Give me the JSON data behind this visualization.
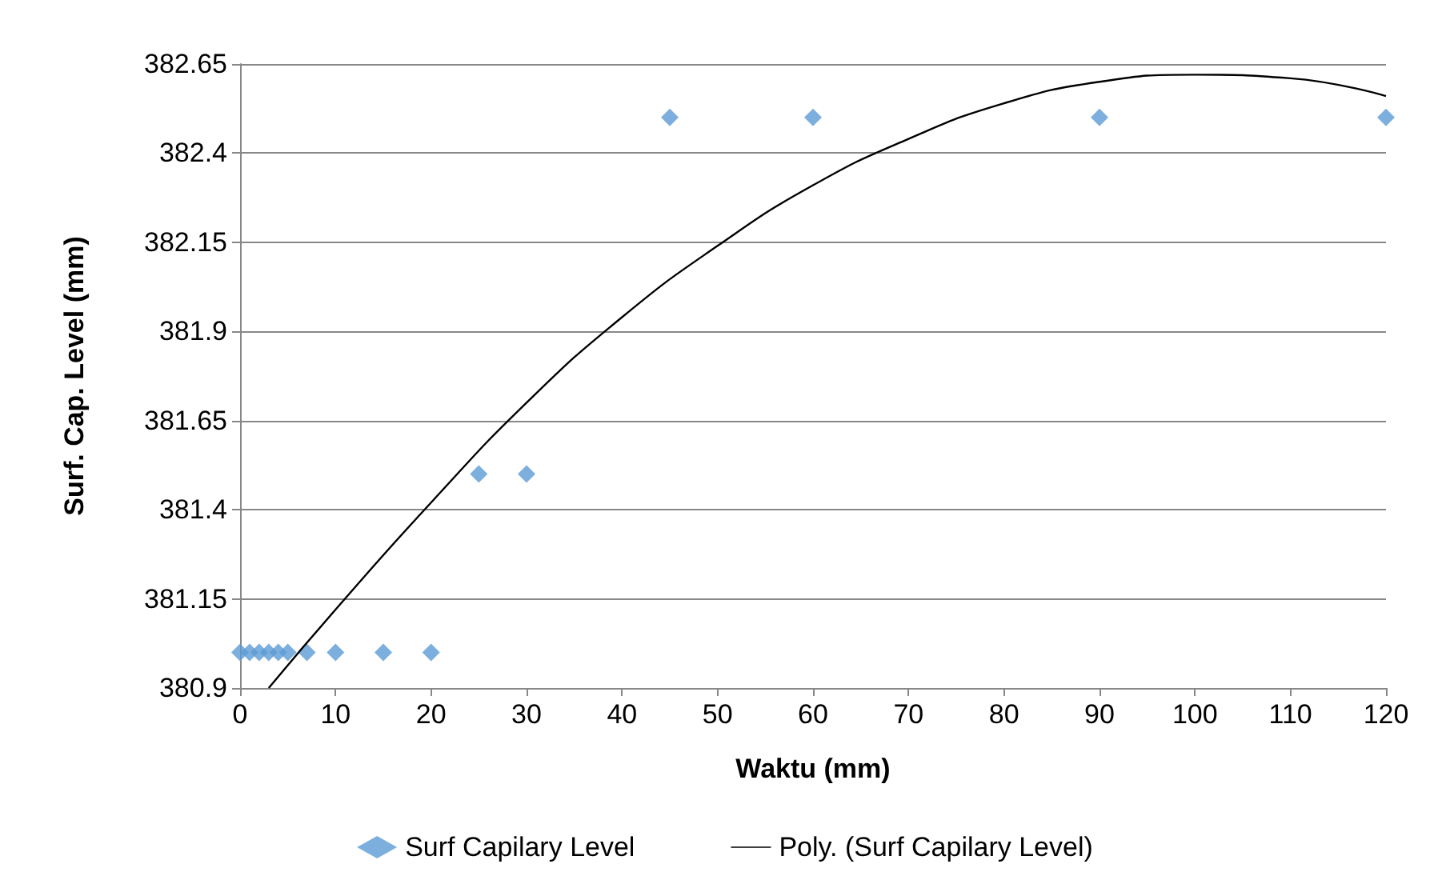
{
  "chart_data": {
    "type": "scatter",
    "xlabel": "Waktu (mm)",
    "ylabel": "Surf. Cap. Level (mm)",
    "xlim": [
      0,
      120
    ],
    "xticks": [
      0,
      10,
      20,
      30,
      40,
      50,
      60,
      70,
      80,
      90,
      100,
      110,
      120
    ],
    "ylim": [
      380.9,
      382.65
    ],
    "yticks": [
      380.9,
      381.15,
      381.4,
      381.65,
      381.9,
      382.15,
      382.4,
      382.65
    ],
    "grid": "y",
    "legend": "bottom",
    "series": [
      {
        "name": "Surf Capilary Level",
        "color": "#5b9bd5",
        "marker": "diamond",
        "x": [
          0,
          1,
          2,
          3,
          4,
          5,
          7,
          10,
          15,
          20,
          25,
          30,
          45,
          60,
          90,
          120
        ],
        "values": [
          381.0,
          381.0,
          381.0,
          381.0,
          381.0,
          381.0,
          381.0,
          381.0,
          381.0,
          381.0,
          381.5,
          381.5,
          382.5,
          382.5,
          382.5,
          382.5
        ]
      },
      {
        "name": "Poly. (Surf Capilary Level)",
        "type": "line",
        "color": "#000000",
        "marker": "none",
        "x": [
          3,
          10,
          20,
          30,
          40,
          50,
          60,
          70,
          80,
          90,
          100,
          110,
          120
        ],
        "values": [
          380.9,
          381.12,
          381.42,
          381.7,
          381.94,
          382.14,
          382.31,
          382.44,
          382.54,
          382.6,
          382.62,
          382.61,
          382.56
        ]
      }
    ]
  }
}
